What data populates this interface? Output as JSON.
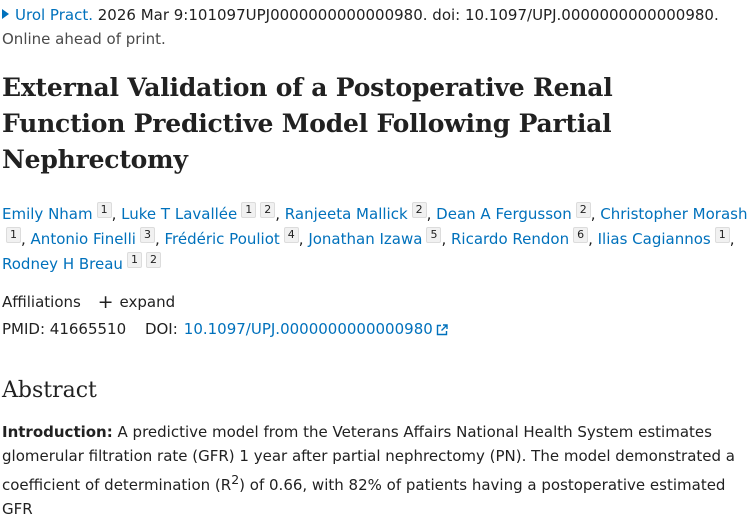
{
  "citation": {
    "journal": "Urol Pract.",
    "details": "2026 Mar 9:101097UPJ0000000000000980. doi: 10.1097/UPJ.0000000000000980.",
    "status": "Online ahead of print."
  },
  "title": "External Validation of a Postoperative Renal Function Predictive Model Following Partial Nephrectomy",
  "authors": [
    {
      "name": "Emily Nham",
      "affs": "1"
    },
    {
      "name": "Luke T Lavallée",
      "affs": "1 2"
    },
    {
      "name": "Ranjeeta Mallick",
      "affs": "2"
    },
    {
      "name": "Dean A Fergusson",
      "affs": "2"
    },
    {
      "name": "Christopher Morash",
      "affs": "1"
    },
    {
      "name": "Antonio Finelli",
      "affs": "3"
    },
    {
      "name": "Frédéric Pouliot",
      "affs": "4"
    },
    {
      "name": "Jonathan Izawa",
      "affs": "5"
    },
    {
      "name": "Ricardo Rendon",
      "affs": "6"
    },
    {
      "name": "Ilias Cagiannos",
      "affs": "1"
    },
    {
      "name": "Rodney H Breau",
      "affs": "1 2"
    }
  ],
  "affiliations": {
    "label": "Affiliations",
    "expand_label": "expand",
    "icon": "plus-icon"
  },
  "identifiers": {
    "pmid_label": "PMID:",
    "pmid": "41665510",
    "doi_label": "DOI:",
    "doi": "10.1097/UPJ.0000000000000980",
    "doi_icon": "external-link-icon"
  },
  "abstract": {
    "heading": "Abstract",
    "intro_label": "Introduction:",
    "intro_text_1": " A predictive model from the Veterans Affairs National Health System estimates glomerular filtration rate (GFR) 1 year after partial nephrectomy (PN). The model demonstrated a coefficient of determination (R",
    "intro_sup": "2",
    "intro_text_2": ") of 0.66, with 82% of patients having a postoperative estimated GFR"
  },
  "colors": {
    "link": "#0071bc",
    "text": "#212121",
    "badge_bg": "#f1f1f1"
  }
}
